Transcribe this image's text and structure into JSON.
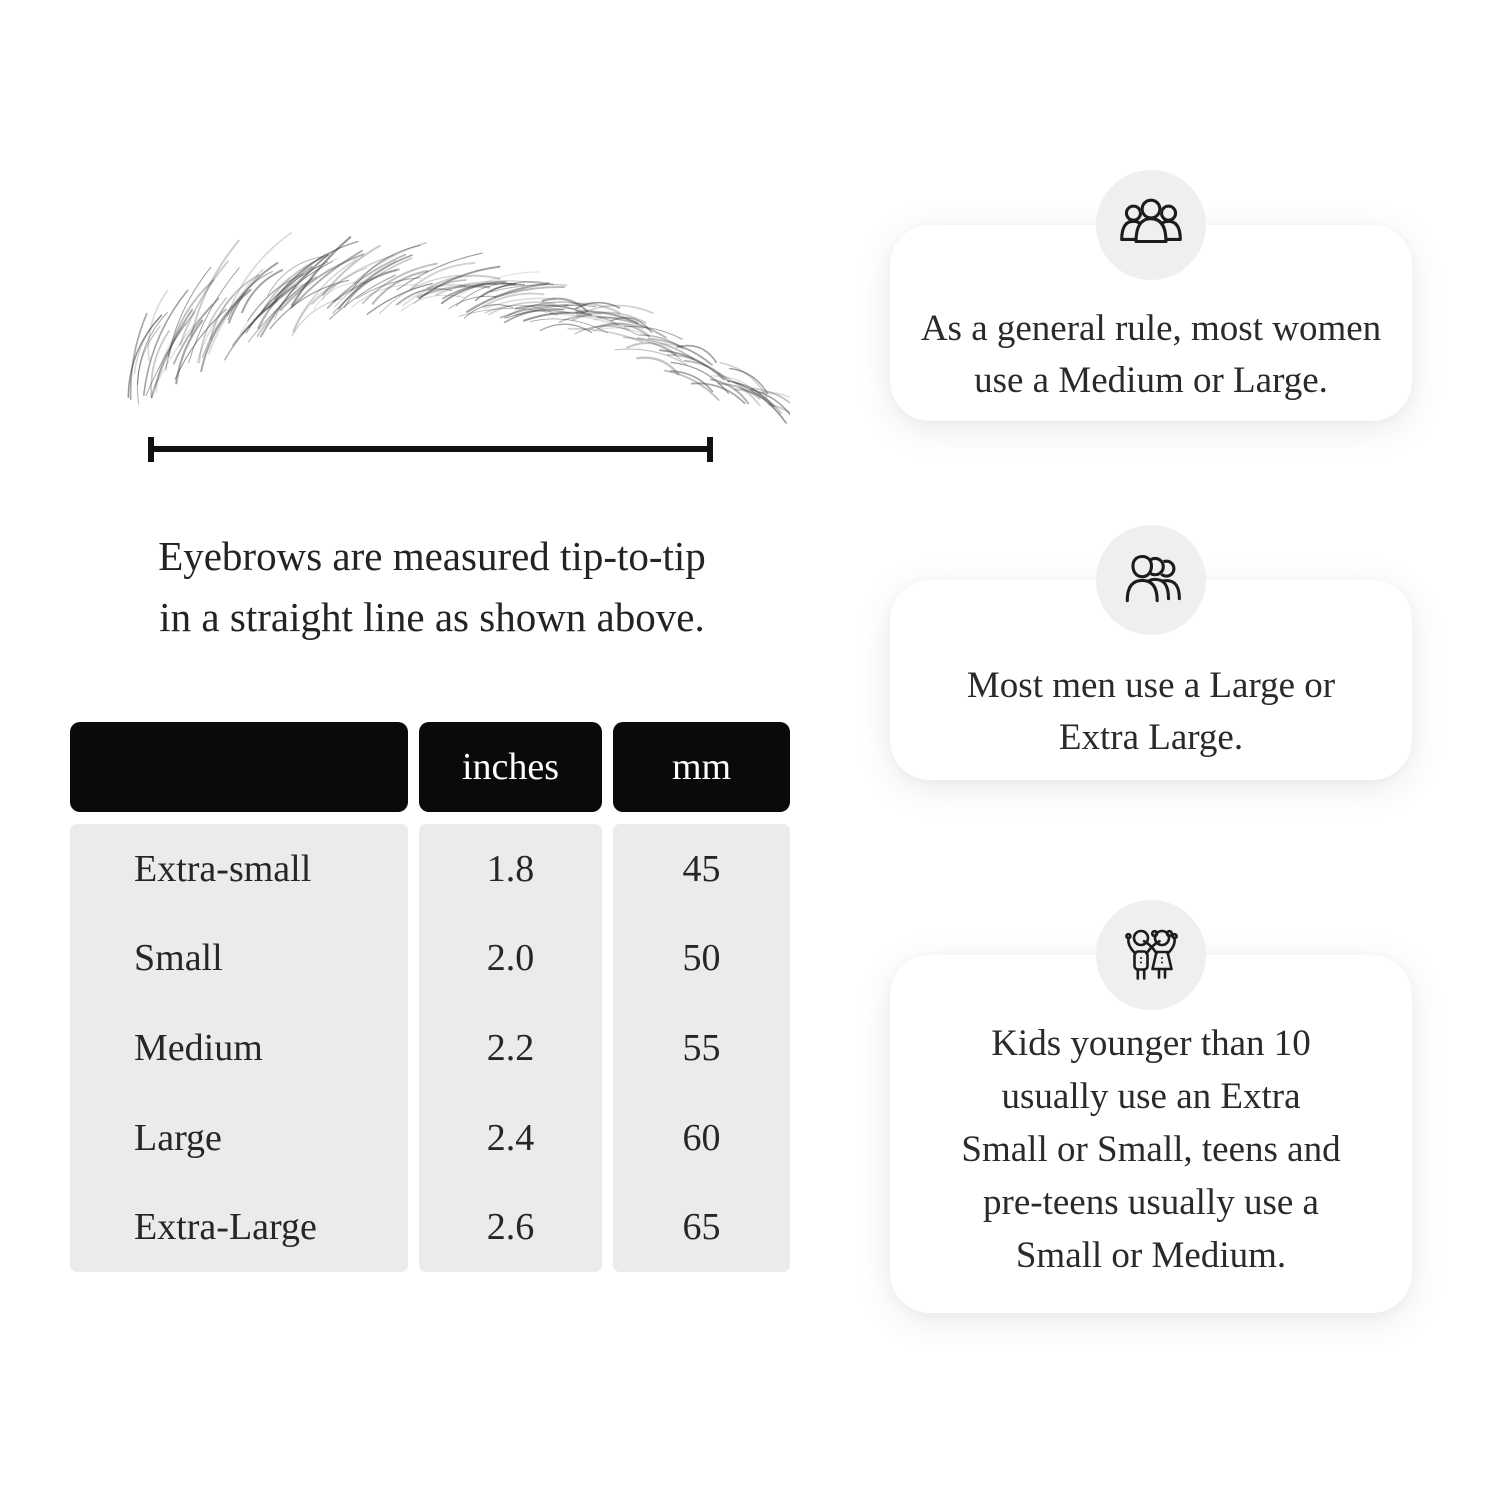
{
  "measurement": {
    "caption_lines": [
      "Eyebrows are measured tip-to-tip",
      "in a straight line as shown above."
    ]
  },
  "size_table": {
    "header": {
      "size_label": "",
      "inches_label": "inches",
      "mm_label": "mm"
    },
    "rows": [
      {
        "label": "Extra-small",
        "inches": "1.8",
        "mm": "45"
      },
      {
        "label": "Small",
        "inches": "2.0",
        "mm": "50"
      },
      {
        "label": "Medium",
        "inches": "2.2",
        "mm": "55"
      },
      {
        "label": "Large",
        "inches": "2.4",
        "mm": "60"
      },
      {
        "label": "Extra-Large",
        "inches": "2.6",
        "mm": "65"
      }
    ]
  },
  "cards": [
    {
      "icon": "women-group-icon",
      "lines": [
        "As a general rule, most women",
        "use a Medium or Large."
      ]
    },
    {
      "icon": "men-group-icon",
      "lines": [
        "Most men use a Large or",
        "Extra Large."
      ]
    },
    {
      "icon": "children-icon",
      "lines": [
        "Kids younger than 10",
        "usually use an Extra",
        "Small or Small, teens and",
        "pre-teens usually use a",
        "Small or Medium."
      ]
    }
  ],
  "colors": {
    "line": "#111111",
    "table_header_bg": "#0a0a0a",
    "table_header_text": "#ffffff",
    "table_body_bg": "#ebebeb",
    "card_bg": "#ffffff",
    "badge_bg": "#efefef"
  }
}
